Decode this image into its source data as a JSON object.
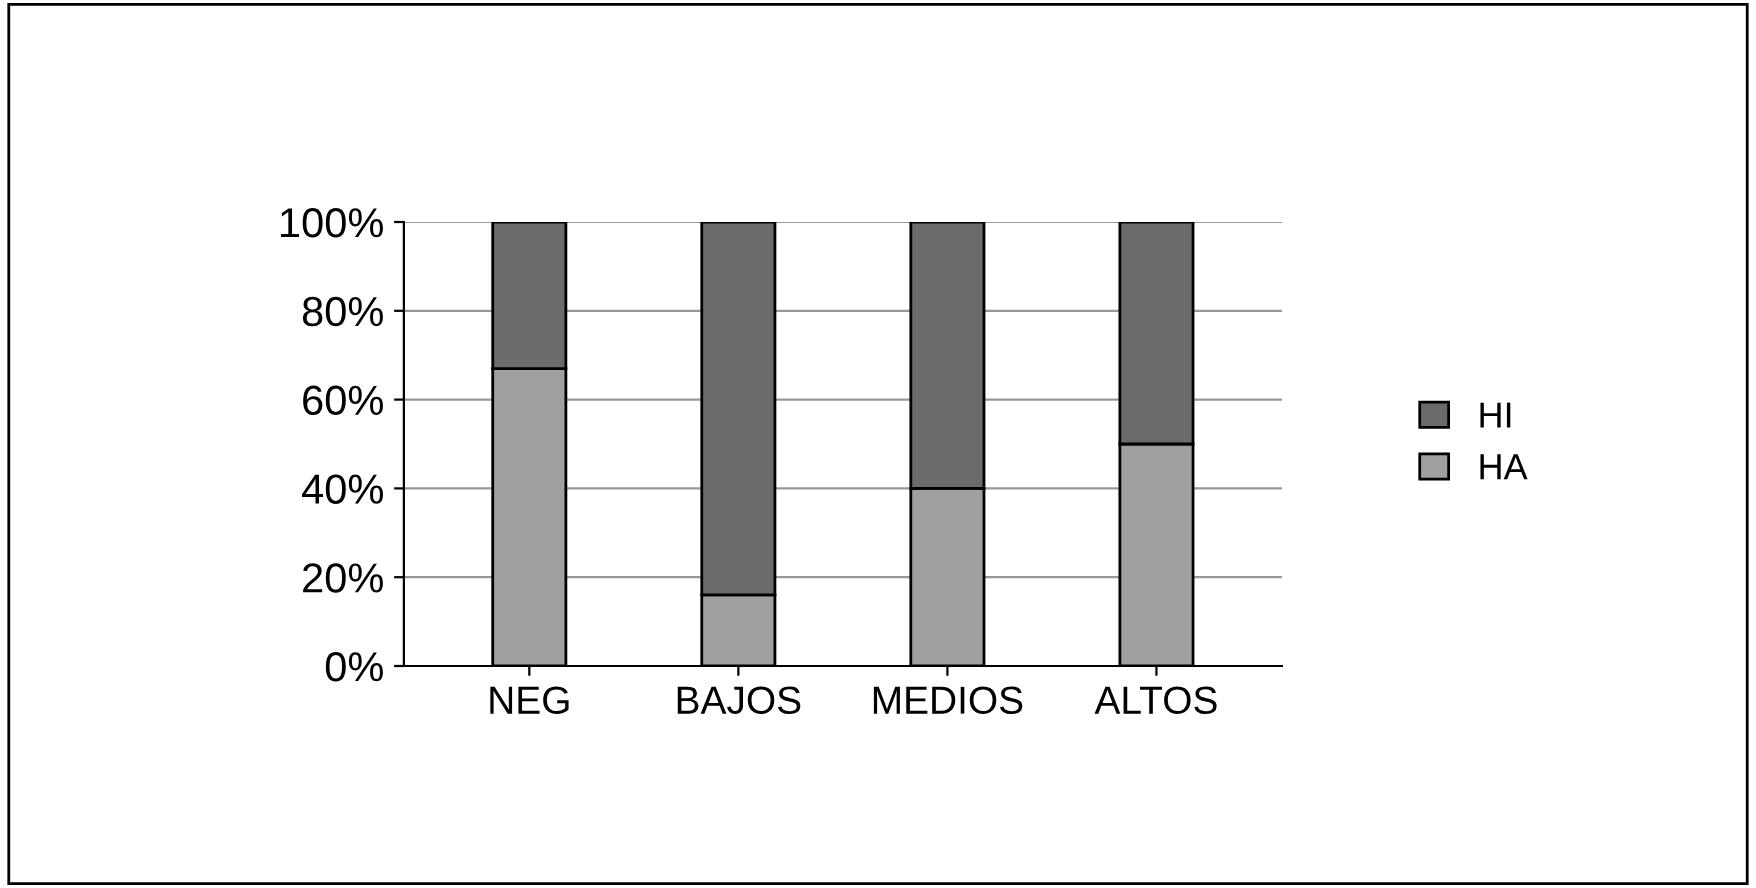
{
  "chart_data": {
    "type": "bar",
    "stacked": true,
    "categories": [
      "NEG",
      "BAJOS",
      "MEDIOS",
      "ALTOS"
    ],
    "series": [
      {
        "name": "HA",
        "color": "#a0a0a0",
        "values": [
          67,
          16,
          40,
          50
        ]
      },
      {
        "name": "HI",
        "color": "#6b6b6b",
        "values": [
          33,
          84,
          60,
          50
        ]
      }
    ],
    "ylim": [
      0,
      100
    ],
    "yticks": [
      {
        "value": 0,
        "label": "0%"
      },
      {
        "value": 20,
        "label": "20%"
      },
      {
        "value": 40,
        "label": "40%"
      },
      {
        "value": 60,
        "label": "60%"
      },
      {
        "value": 80,
        "label": "80%"
      },
      {
        "value": 100,
        "label": "100%"
      }
    ],
    "grid": "y",
    "legend": "right"
  }
}
